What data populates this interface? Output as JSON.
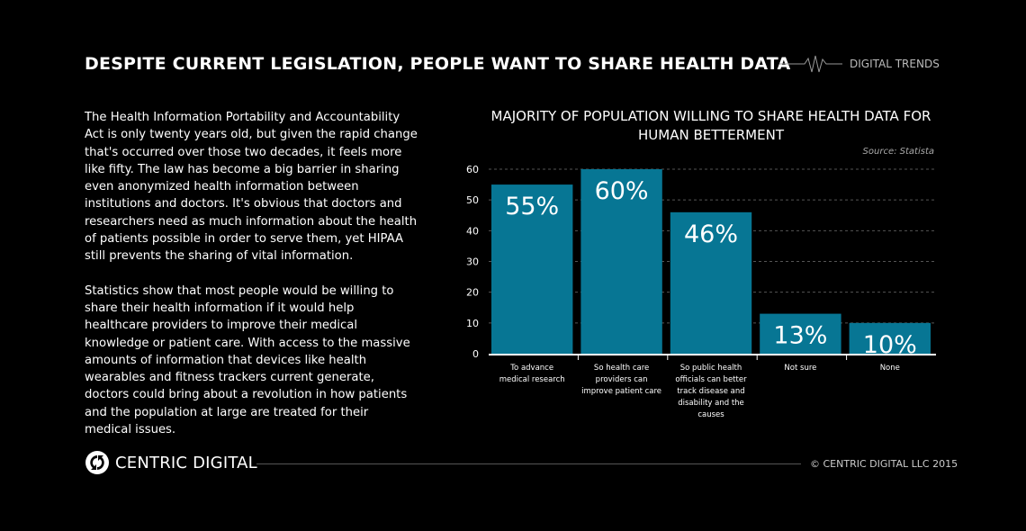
{
  "header": {
    "title": "DESPITE CURRENT LEGISLATION, PEOPLE WANT TO SHARE HEALTH DATA",
    "brand": "DIGITAL TRENDS"
  },
  "body": {
    "paragraphs": [
      "The Health Information Portability and Accountability Act is only twenty years old, but given the rapid change that's occurred over those two decades, it feels more like fifty. The law has become a big barrier in sharing even anonymized health information between institutions and doctors. It's obvious that doctors and researchers need as much information about the health of patients possible in order to serve them, yet HIPAA still prevents the sharing of vital information.",
      "Statistics show that most people would be willing to share their health information if it would help healthcare providers to improve their medical knowledge or patient care. With access to the massive amounts of information that devices like health wearables and fitness trackers current generate, doctors could bring about a revolution in how patients and the population at large are treated for their medical issues."
    ]
  },
  "chart_data": {
    "type": "bar",
    "title": "MAJORITY OF POPULATION WILLING TO SHARE HEALTH DATA FOR HUMAN BETTERMENT",
    "source": "Source:  Statista",
    "categories": [
      "To advance medical research",
      "So health care providers can improve patient care",
      "So public health officials can better track disease and disability and the causes",
      "Not sure",
      "None"
    ],
    "category_lines": [
      [
        "To advance",
        "medical research"
      ],
      [
        "So health care",
        "providers can",
        "improve patient care"
      ],
      [
        "So public health",
        "officials can better",
        "track disease and",
        "disability and the",
        "causes"
      ],
      [
        "Not sure"
      ],
      [
        "None"
      ]
    ],
    "values": [
      55,
      60,
      46,
      13,
      10
    ],
    "data_labels": [
      "55%",
      "60%",
      "46%",
      "13%",
      "10%"
    ],
    "yticks": [
      0,
      10,
      20,
      30,
      40,
      50,
      60
    ],
    "ylim": [
      0,
      60
    ],
    "grid": true,
    "bar_color": "#077694"
  },
  "footer": {
    "brand": "CENTRIC DIGITAL",
    "copyright": "© CENTRIC DIGITAL LLC 2015"
  }
}
